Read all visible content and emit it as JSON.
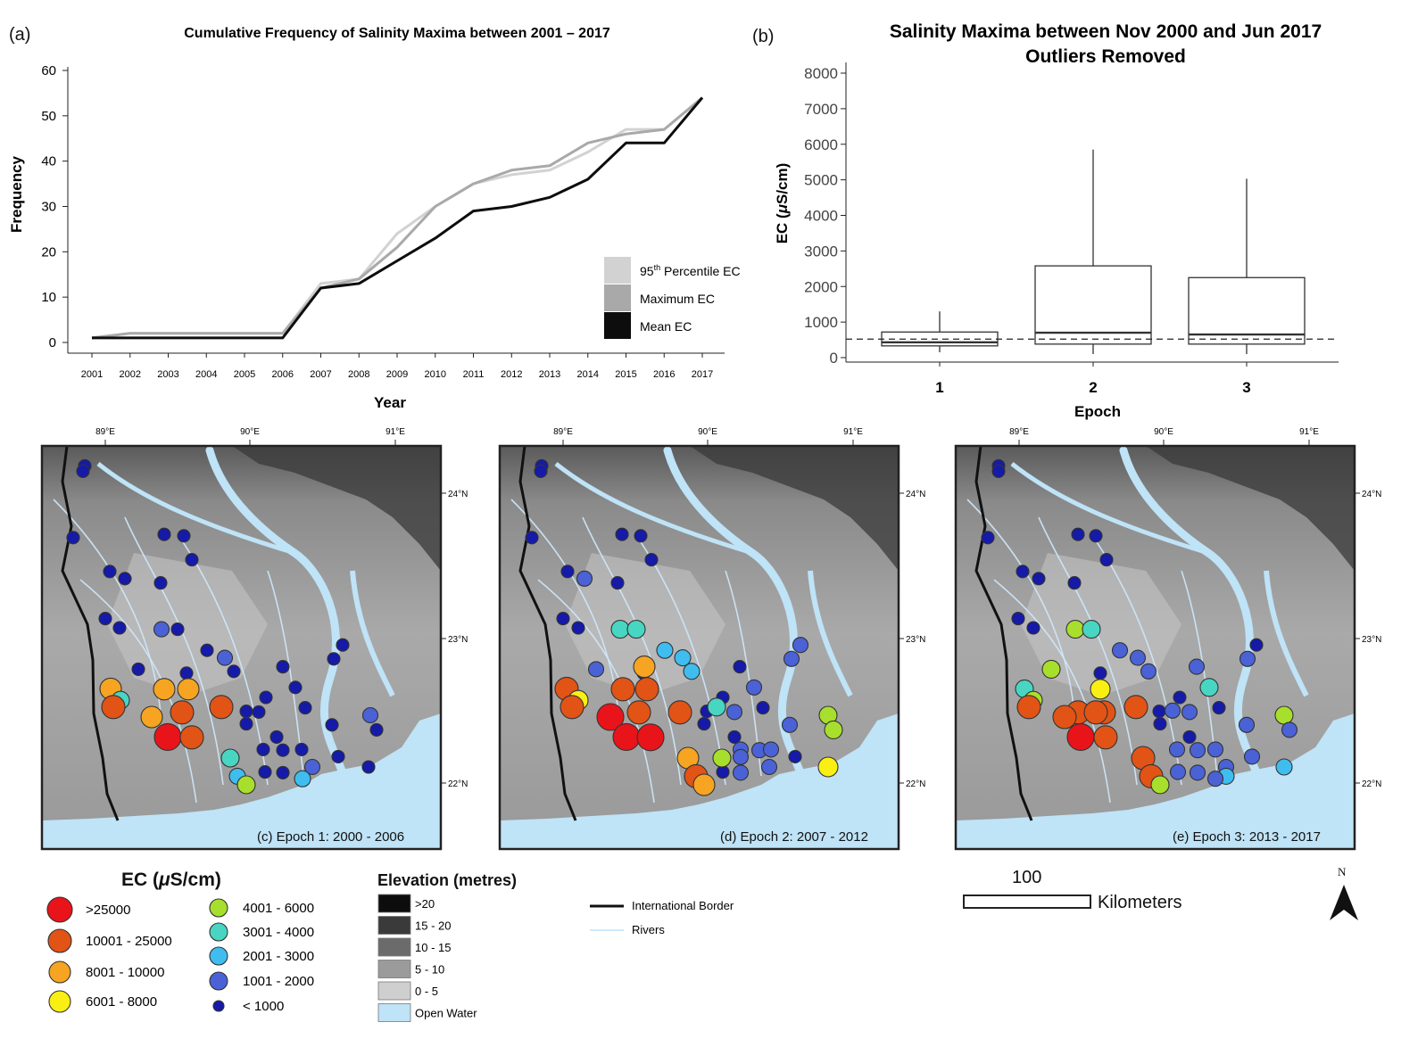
{
  "colors": {
    "ec_gt25000": "#e8141a",
    "ec_10001_25000": "#e25316",
    "ec_8001_10000": "#f6a421",
    "ec_6001_8000": "#f9ef12",
    "ec_4001_6000": "#a8df2c",
    "ec_3001_4000": "#48d6c3",
    "ec_2001_3000": "#3fbdee",
    "ec_1001_2000": "#4a62d6",
    "ec_lt1000": "#151aa8",
    "water": "#bfe3f7",
    "river": "#cfe8fb",
    "border": "#111111"
  },
  "chart_data": [
    {
      "type": "line",
      "panel": "(a)",
      "title": "Cumulative Frequency of Salinity Maxima between 2001 – 2017",
      "xlabel": "Year",
      "ylabel": "Frequency",
      "ylim": [
        0,
        60
      ],
      "yticks": [
        "0",
        "10",
        "20",
        "30",
        "40",
        "50",
        "60"
      ],
      "x": [
        "2001",
        "2002",
        "2003",
        "2004",
        "2005",
        "2006",
        "2007",
        "2008",
        "2009",
        "2010",
        "2011",
        "2012",
        "2013",
        "2014",
        "2015",
        "2016",
        "2017"
      ],
      "series": [
        {
          "name": "95th Percentile EC",
          "legend_base": "95",
          "legend_sup": "th",
          "legend_rest": " Percentile EC",
          "color": "#d2d2d2",
          "values": [
            1,
            2,
            2,
            2,
            2,
            2,
            13,
            14,
            24,
            30,
            35,
            37,
            38,
            42,
            47,
            47,
            54
          ]
        },
        {
          "name": "Maximum EC",
          "color": "#a9a9a9",
          "values": [
            1,
            2,
            2,
            2,
            2,
            2,
            12,
            14,
            21,
            30,
            35,
            38,
            39,
            44,
            46,
            47,
            54
          ]
        },
        {
          "name": "Mean EC",
          "color": "#0d0d0d",
          "values": [
            1,
            1,
            1,
            1,
            1,
            1,
            12,
            13,
            18,
            23,
            29,
            30,
            32,
            36,
            44,
            44,
            54
          ]
        }
      ]
    },
    {
      "type": "box",
      "panel": "(b)",
      "title": "Salinity Maxima between Nov 2000 and Jun 2017",
      "subtitle": "Outliers Removed",
      "xlabel": "Epoch",
      "ylabel_main": "EC (",
      "ylabel_mu": "μ",
      "ylabel_tail": "S/cm)",
      "ylim": [
        0,
        8000
      ],
      "yticks": [
        "0",
        "1000",
        "2000",
        "3000",
        "4000",
        "5000",
        "6000",
        "7000",
        "8000"
      ],
      "reference_line": 520,
      "boxes": [
        {
          "label": "1",
          "min": 150,
          "q1": 330,
          "median": 430,
          "q3": 720,
          "max": 1300
        },
        {
          "label": "2",
          "min": 100,
          "q1": 380,
          "median": 700,
          "q3": 2580,
          "max": 5850
        },
        {
          "label": "3",
          "min": 100,
          "q1": 380,
          "median": 650,
          "q3": 2250,
          "max": 5030
        }
      ]
    },
    {
      "type": "map",
      "panels": [
        {
          "caption": "(c) Epoch 1: 2000 - 2006",
          "points": [
            [
              "lt",
              95,
              89.9
            ],
            [
              "lt",
              93,
              88.4
            ],
            [
              "lt",
              82,
              69.8
            ],
            [
              "lt",
              123,
              60.3
            ],
            [
              "lt",
              140,
              58.3
            ],
            [
              "lt",
              184,
              70.7
            ],
            [
              "lt",
              206,
              70.3
            ],
            [
              "lt",
              215,
              63.6
            ],
            [
              "lt",
              180,
              57.1
            ],
            [
              "lt",
              118,
              47.1
            ],
            [
              "lt",
              134,
              44.5
            ],
            [
              "b",
              181,
              44.1
            ],
            [
              "lt",
              199,
              44.1
            ],
            [
              "lt",
              232,
              38.2
            ],
            [
              "lt",
              209,
              31.8
            ],
            [
              "lt",
              155,
              32.9
            ],
            [
              "b",
              252,
              36.1
            ],
            [
              "lt",
              262,
              32.3
            ],
            [
              "lt",
              317,
              33.6
            ],
            [
              "lt",
              331,
              27.8
            ],
            [
              "lt",
              298,
              25.0
            ],
            [
              "lt",
              342,
              22.1
            ],
            [
              "lt",
              384,
              39.7
            ],
            [
              "lt",
              374,
              35.8
            ],
            [
              "b",
              415,
              20.0
            ],
            [
              "lt",
              422,
              15.9
            ],
            [
              "lt",
              372,
              17.3
            ],
            [
              "lt",
              290,
              20.9
            ],
            [
              "lt",
              276,
              21.1
            ],
            [
              "lt",
              276,
              17.6
            ],
            [
              "lt",
              310,
              13.9
            ],
            [
              "lt",
              295,
              10.4
            ],
            [
              "lt",
              317,
              10.2
            ],
            [
              "lt",
              338,
              10.4
            ],
            [
              "lt",
              379,
              8.4
            ],
            [
              "lt",
              413,
              5.5
            ],
            [
              "b",
              350,
              5.5
            ],
            [
              "lt",
              297,
              4.1
            ],
            [
              "lt",
              317,
              3.9
            ],
            [
              "a",
              124,
              27.4
            ],
            [
              "t",
              135,
              24.2
            ],
            [
              "o",
              127,
              22.3
            ],
            [
              "a",
              184,
              27.3
            ],
            [
              "a",
              211,
              27.3
            ],
            [
              "o",
              248,
              22.3
            ],
            [
              "o",
              204,
              20.8
            ],
            [
              "a",
              170,
              19.5
            ],
            [
              "r",
              188,
              13.9
            ],
            [
              "o",
              215,
              13.8
            ],
            [
              "t",
              258,
              8.0
            ],
            [
              "s",
              266,
              2.9
            ],
            [
              "s",
              339,
              2.2
            ],
            [
              "g",
              276,
              0.5
            ]
          ]
        },
        {
          "caption": "(d) Epoch 2: 2007 - 2012",
          "points": [
            [
              "lt",
              607,
              89.9
            ],
            [
              "lt",
              606,
              88.4
            ],
            [
              "lt",
              596,
              69.8
            ],
            [
              "lt",
              636,
              60.3
            ],
            [
              "b",
              655,
              58.3
            ],
            [
              "lt",
              697,
              70.7
            ],
            [
              "lt",
              718,
              70.3
            ],
            [
              "lt",
              730,
              63.6
            ],
            [
              "lt",
              692,
              57.1
            ],
            [
              "lt",
              631,
              47.1
            ],
            [
              "lt",
              648,
              44.5
            ],
            [
              "t",
              695,
              44.1
            ],
            [
              "t",
              713,
              44.1
            ],
            [
              "s",
              745,
              38.2
            ],
            [
              "lt",
              721,
              31.8
            ],
            [
              "b",
              668,
              32.9
            ],
            [
              "s",
              765,
              36.1
            ],
            [
              "s",
              775,
              32.3
            ],
            [
              "lt",
              829,
              33.6
            ],
            [
              "b",
              845,
              27.8
            ],
            [
              "lt",
              810,
              25.0
            ],
            [
              "lt",
              855,
              22.1
            ],
            [
              "b",
              897,
              39.7
            ],
            [
              "b",
              887,
              35.8
            ],
            [
              "g",
              928,
              20.0
            ],
            [
              "g",
              934,
              15.9
            ],
            [
              "b",
              885,
              17.3
            ],
            [
              "b",
              823,
              20.9
            ],
            [
              "lt",
              792,
              21.1
            ],
            [
              "lt",
              789,
              17.6
            ],
            [
              "lt",
              823,
              13.9
            ],
            [
              "b",
              830,
              10.4
            ],
            [
              "b",
              851,
              10.2
            ],
            [
              "b",
              864,
              10.4
            ],
            [
              "lt",
              891,
              8.4
            ],
            [
              "y",
              928,
              5.5
            ],
            [
              "b",
              862,
              5.5
            ],
            [
              "lt",
              810,
              4.1
            ],
            [
              "b",
              830,
              3.9
            ],
            [
              "o",
              635,
              27.4
            ],
            [
              "y",
              648,
              24.2
            ],
            [
              "o",
              641,
              22.3
            ],
            [
              "o",
              698,
              27.3
            ],
            [
              "o",
              725,
              27.3
            ],
            [
              "a",
              722,
              33.6
            ],
            [
              "t",
              803,
              22.3
            ],
            [
              "o",
              762,
              20.8
            ],
            [
              "o",
              716,
              20.8
            ],
            [
              "r",
              684,
              19.5
            ],
            [
              "r",
              702,
              13.9
            ],
            [
              "r",
              729,
              13.8
            ],
            [
              "a",
              771,
              8.0
            ],
            [
              "g",
              809,
              8.0
            ],
            [
              "b",
              830,
              8.3
            ],
            [
              "o",
              780,
              2.9
            ],
            [
              "a",
              789,
              0.5
            ]
          ]
        },
        {
          "caption": "(e) Epoch 3: 2013 - 2017",
          "points": [
            [
              "lt",
              1119,
              89.9
            ],
            [
              "lt",
              1119,
              88.4
            ],
            [
              "lt",
              1107,
              69.8
            ],
            [
              "lt",
              1146,
              60.3
            ],
            [
              "lt",
              1164,
              58.3
            ],
            [
              "lt",
              1208,
              70.7
            ],
            [
              "lt",
              1228,
              70.3
            ],
            [
              "lt",
              1240,
              63.6
            ],
            [
              "lt",
              1204,
              57.1
            ],
            [
              "lt",
              1141,
              47.1
            ],
            [
              "lt",
              1158,
              44.5
            ],
            [
              "g",
              1205,
              44.1
            ],
            [
              "t",
              1223,
              44.1
            ],
            [
              "b",
              1255,
              38.2
            ],
            [
              "lt",
              1233,
              31.8
            ],
            [
              "g",
              1178,
              32.9
            ],
            [
              "b",
              1275,
              36.1
            ],
            [
              "b",
              1287,
              32.3
            ],
            [
              "b",
              1341,
              33.6
            ],
            [
              "t",
              1355,
              27.8
            ],
            [
              "lt",
              1322,
              25.0
            ],
            [
              "lt",
              1366,
              22.1
            ],
            [
              "lt",
              1408,
              39.7
            ],
            [
              "b",
              1398,
              35.8
            ],
            [
              "g",
              1439,
              20.0
            ],
            [
              "b",
              1445,
              15.9
            ],
            [
              "b",
              1397,
              17.3
            ],
            [
              "b",
              1333,
              20.9
            ],
            [
              "lt",
              1299,
              21.1
            ],
            [
              "lt",
              1300,
              17.6
            ],
            [
              "lt",
              1333,
              13.9
            ],
            [
              "b",
              1319,
              10.4
            ],
            [
              "b",
              1342,
              10.2
            ],
            [
              "b",
              1362,
              10.4
            ],
            [
              "b",
              1403,
              8.4
            ],
            [
              "s",
              1439,
              5.5
            ],
            [
              "b",
              1374,
              5.5
            ],
            [
              "b",
              1320,
              4.1
            ],
            [
              "b",
              1342,
              3.9
            ],
            [
              "b",
              1314,
              21.3
            ],
            [
              "t",
              1148,
              27.4
            ],
            [
              "g",
              1158,
              24.2
            ],
            [
              "o",
              1153,
              22.3
            ],
            [
              "y",
              1233,
              27.3
            ],
            [
              "o",
              1208,
              20.8
            ],
            [
              "o",
              1237,
              20.8
            ],
            [
              "o",
              1273,
              22.3
            ],
            [
              "o",
              1228,
              20.8
            ],
            [
              "o",
              1193,
              19.5
            ],
            [
              "r",
              1211,
              13.9
            ],
            [
              "o",
              1239,
              13.8
            ],
            [
              "o",
              1281,
              8.0
            ],
            [
              "s",
              1374,
              2.9
            ],
            [
              "b",
              1362,
              2.2
            ],
            [
              "o",
              1290,
              2.9
            ],
            [
              "g",
              1300,
              0.5
            ]
          ]
        }
      ],
      "lon_labels": [
        "89°E",
        "90°E",
        "91°E"
      ],
      "lat_labels": [
        "24°N",
        "23°N",
        "22°N"
      ]
    }
  ],
  "ec_legend": {
    "title_main": "EC (",
    "title_mu": "μ",
    "title_tail": "S/cm)",
    "items": [
      {
        "label": ">25000",
        "color_key": "ec_gt25000",
        "size": "xl"
      },
      {
        "label": "10001 - 25000",
        "color_key": "ec_10001_25000",
        "size": "l"
      },
      {
        "label": "8001 - 10000",
        "color_key": "ec_8001_10000",
        "size": "m"
      },
      {
        "label": "6001 - 8000",
        "color_key": "ec_6001_8000",
        "size": "m"
      },
      {
        "label": "4001 - 6000",
        "color_key": "ec_4001_6000",
        "size": "s"
      },
      {
        "label": "3001 - 4000",
        "color_key": "ec_3001_4000",
        "size": "s"
      },
      {
        "label": "2001 - 3000",
        "color_key": "ec_2001_3000",
        "size": "s"
      },
      {
        "label": "1001 - 2000",
        "color_key": "ec_1001_2000",
        "size": "s"
      },
      {
        "label": "< 1000",
        "color_key": "ec_lt1000",
        "size": "xs"
      }
    ]
  },
  "elevation_legend": {
    "title": "Elevation (metres)",
    "items": [
      {
        "label": ">20",
        "color": "#0d0d0d"
      },
      {
        "label": "15 - 20",
        "color": "#3a3a3a"
      },
      {
        "label": "10 - 15",
        "color": "#6b6b6b"
      },
      {
        "label": "5 - 10",
        "color": "#9b9b9b"
      },
      {
        "label": "0 - 5",
        "color": "#cfcfcf"
      },
      {
        "label": "Open Water",
        "color": "#bfe3f7"
      }
    ]
  },
  "line_legend": {
    "border": "International Border",
    "rivers": "Rivers"
  },
  "scale_bar": {
    "value": "100",
    "unit": "Kilometers"
  },
  "north_arrow": "N"
}
